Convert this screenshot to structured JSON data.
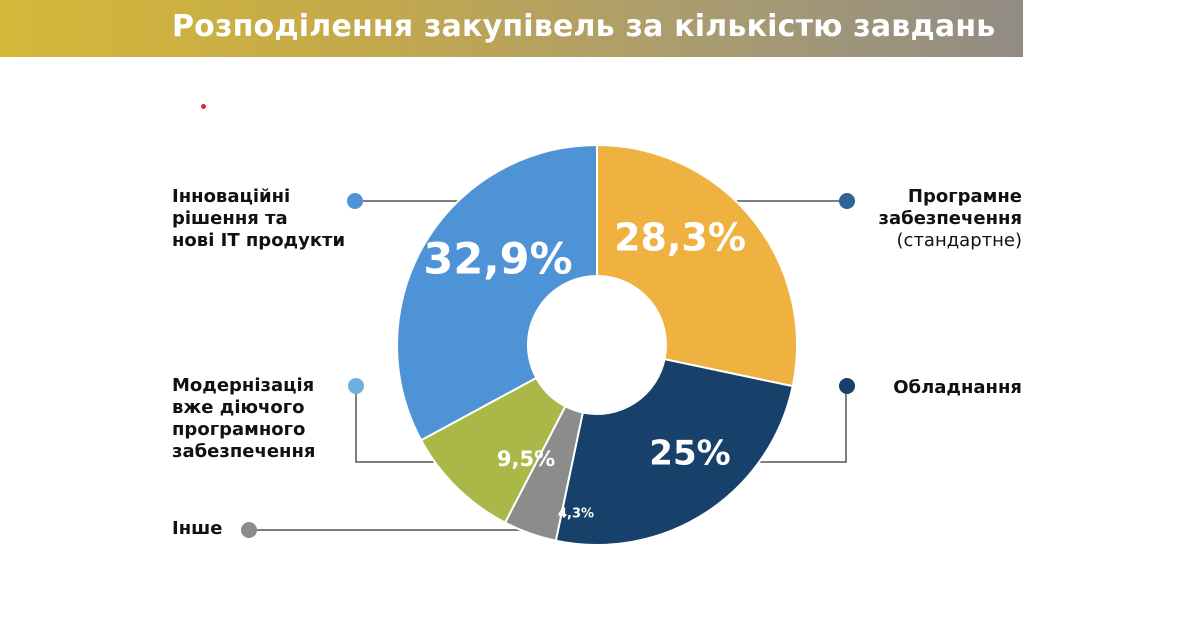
{
  "title": "Розподілення закупівель за кількістю завдань",
  "colors": {
    "innovations": "#4f93d7",
    "software": "#efb13f",
    "equipment": "#17406b",
    "other": "#8c8c8c",
    "modernization": "#a9b846",
    "dot_software": "#2e6497",
    "dot_modernization": "#6fb0e0"
  },
  "labels": {
    "innovations": [
      "Інноваційні",
      "рішення та",
      "нові IT продукти"
    ],
    "software": [
      "Програмне",
      "забезпечення"
    ],
    "software_sub": "(стандартне)",
    "equipment": [
      "Обладнання"
    ],
    "modernization": [
      "Модернізація",
      "вже діючого",
      "програмного",
      "забезпечення"
    ],
    "other": [
      "Інше"
    ]
  },
  "chart_data": {
    "type": "pie",
    "title": "Розподілення закупівель за кількістю завдань",
    "donut": true,
    "slices": [
      {
        "key": "software",
        "label": "Програмне забезпечення (стандартне)",
        "value": 28.3,
        "display": "28,3%",
        "color": "#efb13f"
      },
      {
        "key": "equipment",
        "label": "Обладнання",
        "value": 25,
        "display": "25%",
        "color": "#17406b"
      },
      {
        "key": "other",
        "label": "Інше",
        "value": 4.3,
        "display": "4,3%",
        "color": "#8c8c8c"
      },
      {
        "key": "modernization",
        "label": "Модернізація вже діючого програмного забезпечення",
        "value": 9.5,
        "display": "9,5%",
        "color": "#a9b846"
      },
      {
        "key": "innovations",
        "label": "Інноваційні рішення та нові IT продукти",
        "value": 32.9,
        "display": "32,9%",
        "color": "#4f93d7"
      }
    ]
  }
}
